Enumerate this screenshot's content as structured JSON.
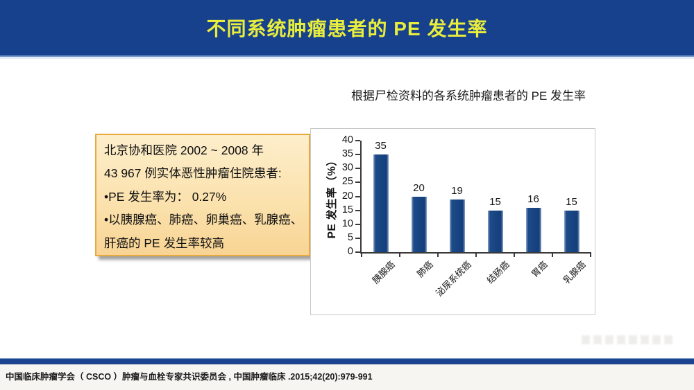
{
  "colors": {
    "banner-blue": "#17418C",
    "banner-edge": "#6F92C3",
    "title-yellow": "#E9ED3C",
    "box-bg-top": "#FDEECB",
    "box-bg-bottom": "#F8D494",
    "box-border": "#E8A93E",
    "bar-blue": "#143E7C",
    "bar-edge": "#8FA6C6",
    "axis-color": "#3A3A3A",
    "panel-border": "#C9C9C9",
    "bottom-bar-blue": "#1B4390",
    "footer-bg": "#F6F5F2",
    "text-dark": "#1C1C1C"
  },
  "header": {
    "title": "不同系统肿瘤患者的 PE 发生率"
  },
  "info_box": {
    "lines": [
      "北京协和医院 2002 ~ 2008 年",
      "43 967 例实体恶性肿瘤住院患者:",
      "•PE 发生率为：  0.27%",
      "•以胰腺癌、肺癌、卵巢癌、乳腺癌、",
      "肝癌的 PE 发生率较高"
    ]
  },
  "chart_data": {
    "type": "bar",
    "title": "根据尸检资料的各系统肿瘤患者的 PE 发生率",
    "categories": [
      "胰腺癌",
      "肺癌",
      "泌尿系统癌",
      "结肠癌",
      "胃癌",
      "乳腺癌"
    ],
    "values": [
      35,
      20,
      19,
      15,
      16,
      15
    ],
    "xlabel": "",
    "ylabel": "PE 发生率（%）",
    "ylim": [
      0,
      40
    ],
    "ytick_step": 5,
    "grid": false,
    "legend": false,
    "bar_color": "#143E7C"
  },
  "footer": {
    "citation": "中国临床肿瘤学会（ CSCO ）肿瘤与血栓专家共识委员会 , 中国肿瘤临床 .2015;42(20):979-991"
  }
}
